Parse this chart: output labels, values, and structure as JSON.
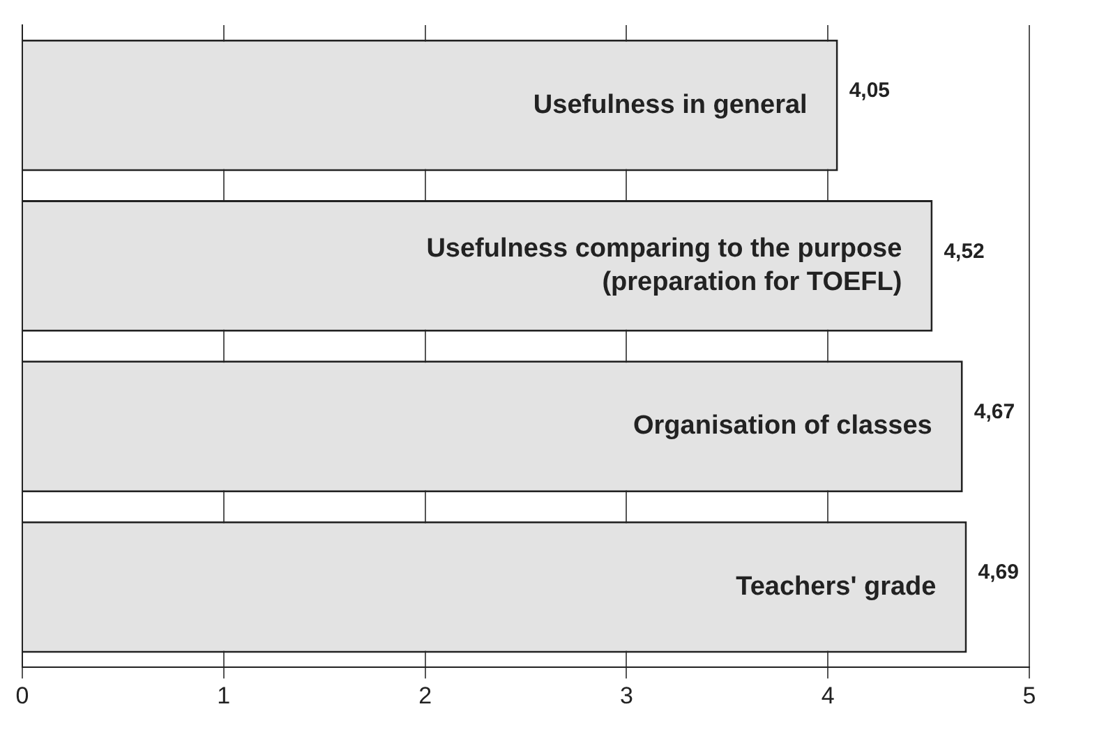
{
  "chart_data": {
    "type": "bar",
    "orientation": "horizontal",
    "categories": [
      "Usefulness in general",
      "Usefulness comparing to the purpose (preparation for TOEFL)",
      "Organisation of classes",
      "Teachers' grade"
    ],
    "values": [
      4.05,
      4.52,
      4.67,
      4.69
    ],
    "value_labels": [
      "4,05",
      "4,52",
      "4,67",
      "4,69"
    ],
    "color": "#e3e3e3",
    "xlim": [
      0,
      5
    ],
    "xticks": [
      0,
      1,
      2,
      3,
      4,
      5
    ],
    "grid": "x",
    "tick_labels": "x",
    "legend": false
  }
}
